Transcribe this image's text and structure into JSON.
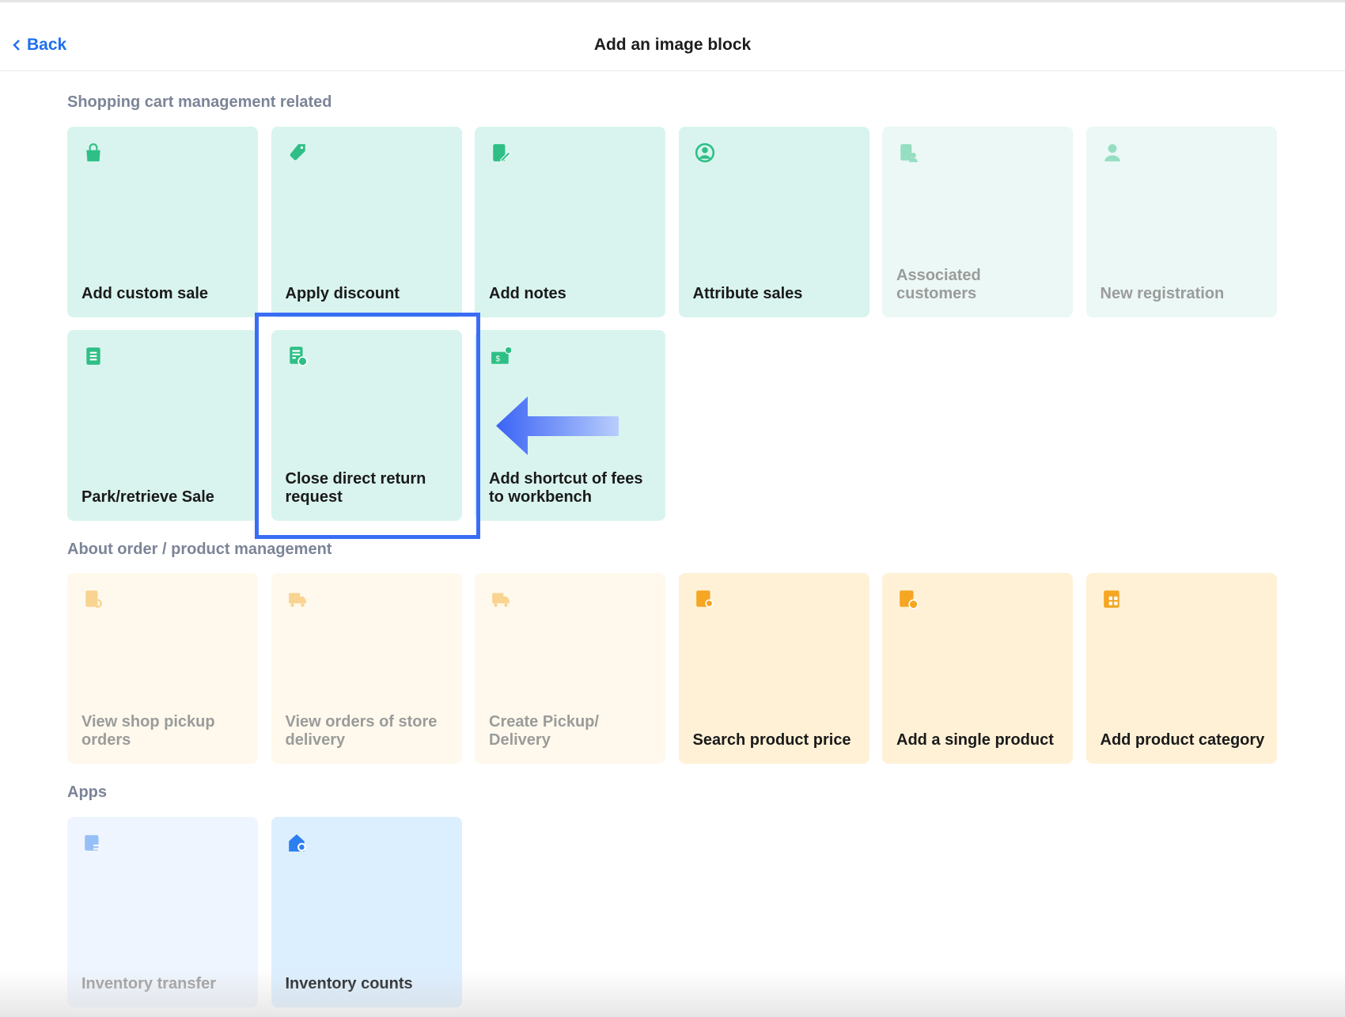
{
  "header": {
    "back_label": "Back",
    "title": "Add an image block"
  },
  "colors": {
    "accent": "#1f6ff0",
    "highlight": "#3a6df5",
    "green_icon": "#2fbf86",
    "orange_icon": "#f5a623",
    "blue_icon": "#2d7ff0"
  },
  "sections": [
    {
      "title": "Shopping cart management related",
      "cards": [
        {
          "label": "Add custom sale",
          "icon": "shopping-bag-icon",
          "enabled": true
        },
        {
          "label": "Apply discount",
          "icon": "tag-icon",
          "enabled": true
        },
        {
          "label": "Add notes",
          "icon": "note-edit-icon",
          "enabled": true
        },
        {
          "label": "Attribute sales",
          "icon": "user-circle-icon",
          "enabled": true
        },
        {
          "label": "Associated customers",
          "icon": "document-user-icon",
          "enabled": false
        },
        {
          "label": "New registration",
          "icon": "user-icon",
          "enabled": false
        },
        {
          "label": "Park/retrieve Sale",
          "icon": "document-list-icon",
          "enabled": true
        },
        {
          "label": "Close direct return request",
          "icon": "document-return-icon",
          "enabled": true,
          "highlighted": true
        },
        {
          "label": "Add shortcut of fees to workbench",
          "icon": "money-plus-icon",
          "enabled": true
        }
      ]
    },
    {
      "title": "About order / product management",
      "cards": [
        {
          "label": "View shop pickup orders",
          "icon": "document-search-icon",
          "enabled": false
        },
        {
          "label": "View orders of store delivery",
          "icon": "truck-icon",
          "enabled": false
        },
        {
          "label": "Create Pickup/ Delivery",
          "icon": "truck-icon",
          "enabled": false
        },
        {
          "label": "Search product price",
          "icon": "price-search-icon",
          "enabled": true
        },
        {
          "label": "Add a single product",
          "icon": "product-add-icon",
          "enabled": true
        },
        {
          "label": "Add product category",
          "icon": "category-grid-icon",
          "enabled": true
        }
      ]
    },
    {
      "title": "Apps",
      "cards": [
        {
          "label": "Inventory transfer",
          "icon": "transfer-icon",
          "enabled": false
        },
        {
          "label": "Inventory counts",
          "icon": "warehouse-search-icon",
          "enabled": true
        }
      ]
    }
  ]
}
